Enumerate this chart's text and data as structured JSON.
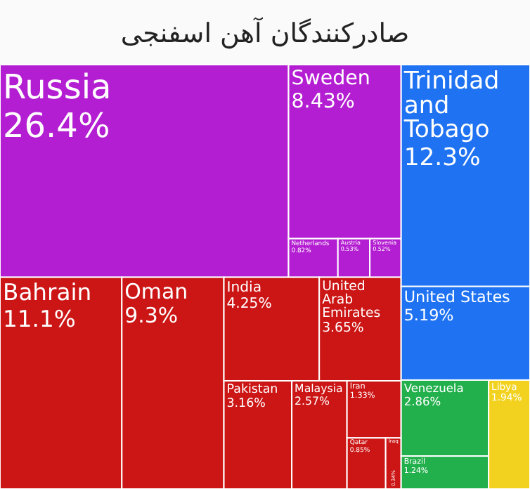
{
  "chart_data": {
    "type": "other",
    "title": "صادرکنندگان آهن اسفنجی",
    "categories": [
      "Russia",
      "Sweden",
      "Netherlands",
      "Austria",
      "Slovenia",
      "Bahrain",
      "Oman",
      "India",
      "United Arab Emirates",
      "Pakistan",
      "Malaysia",
      "Iran",
      "Qatar",
      "Iraq",
      "Trinidad and Tobago",
      "United States",
      "Venezuela",
      "Brazil",
      "Libya"
    ],
    "values": [
      26.4,
      8.43,
      0.82,
      0.53,
      0.52,
      11.1,
      9.3,
      4.25,
      3.65,
      3.16,
      2.57,
      1.33,
      0.85,
      0.34,
      12.3,
      5.19,
      2.86,
      1.24,
      1.94
    ],
    "value_labels": [
      "26.4%",
      "8.43%",
      "0.82%",
      "0.53%",
      "0.52%",
      "11.1%",
      "9.3%",
      "4.25%",
      "3.65%",
      "3.16%",
      "2.57%",
      "1.33%",
      "0.85%",
      "0.34%",
      "12.3%",
      "5.19%",
      "2.86%",
      "1.24%",
      "1.94%"
    ],
    "colors": [
      "#b41ed2",
      "#b41ed2",
      "#b41ed2",
      "#b41ed2",
      "#b41ed2",
      "#cc1515",
      "#cc1515",
      "#cc1515",
      "#cc1515",
      "#cc1515",
      "#cc1515",
      "#cc1515",
      "#cc1515",
      "#cc1515",
      "#1f73f2",
      "#1f73f2",
      "#22b04c",
      "#22b04c",
      "#f2d21e"
    ]
  }
}
